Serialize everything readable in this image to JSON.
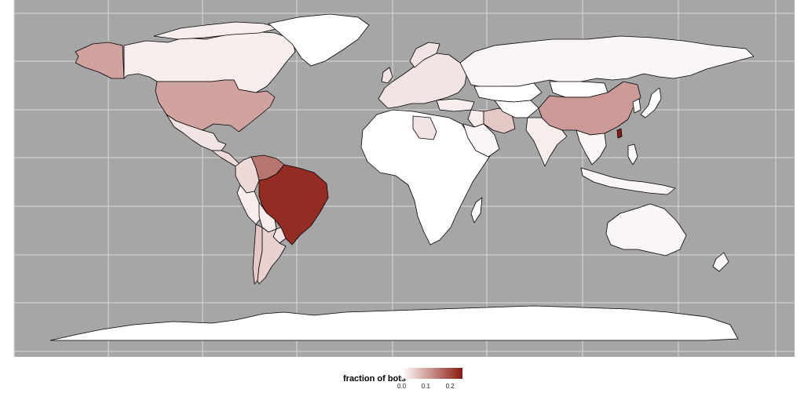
{
  "legend": {
    "title": "fraction of bots",
    "ticks": [
      {
        "label": "0.0",
        "value": 0.0
      },
      {
        "label": "0.1",
        "value": 0.1
      },
      {
        "label": "0.2",
        "value": 0.2
      }
    ],
    "range": [
      0.0,
      0.25
    ],
    "low_color": "#ffffff",
    "high_color": "#8b1a10"
  },
  "colors": {
    "panel_background": "#a6a6a6",
    "grid": "#d9d9d9",
    "no_data": "#ffffff"
  },
  "countries": [
    {
      "name": "Brazil",
      "fraction": 0.23
    },
    {
      "name": "Taiwan",
      "fraction": 0.25
    },
    {
      "name": "Venezuela",
      "fraction": 0.15
    },
    {
      "name": "United States",
      "fraction": 0.1
    },
    {
      "name": "Alaska (USA)",
      "fraction": 0.1
    },
    {
      "name": "China",
      "fraction": 0.11
    },
    {
      "name": "Iran",
      "fraction": 0.06
    },
    {
      "name": "Colombia",
      "fraction": 0.04
    },
    {
      "name": "Argentina",
      "fraction": 0.05
    },
    {
      "name": "Chile",
      "fraction": 0.06
    },
    {
      "name": "Paraguay",
      "fraction": 0.03
    },
    {
      "name": "Mexico",
      "fraction": 0.03
    },
    {
      "name": "Canada",
      "fraction": 0.02
    },
    {
      "name": "Russia",
      "fraction": 0.01
    },
    {
      "name": "India",
      "fraction": 0.02
    },
    {
      "name": "Australia",
      "fraction": 0.01
    },
    {
      "name": "Libya",
      "fraction": 0.03
    },
    {
      "name": "Turkey",
      "fraction": 0.02
    },
    {
      "name": "Iraq",
      "fraction": 0.02
    },
    {
      "name": "Saudi Arabia",
      "fraction": 0.01
    },
    {
      "name": "Kazakhstan",
      "fraction": 0.0
    },
    {
      "name": "Mongolia",
      "fraction": 0.0
    },
    {
      "name": "Peru",
      "fraction": 0.02
    },
    {
      "name": "Bolivia",
      "fraction": 0.02
    },
    {
      "name": "Africa",
      "fraction": 0.0
    },
    {
      "name": "Europe",
      "fraction": 0.03
    },
    {
      "name": "Greenland",
      "fraction": 0.0
    },
    {
      "name": "Antarctica",
      "fraction": 0.0
    },
    {
      "name": "Indonesia",
      "fraction": 0.01
    },
    {
      "name": "Japan",
      "fraction": 0.0
    }
  ]
}
